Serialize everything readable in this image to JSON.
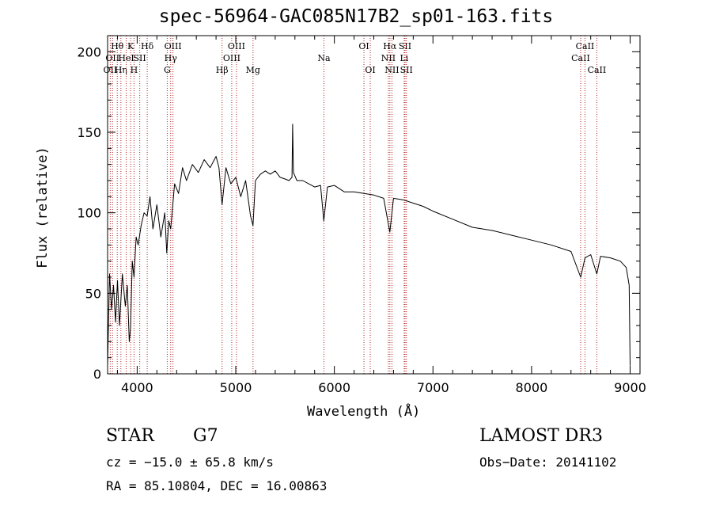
{
  "chart_data": {
    "type": "line",
    "title": "spec-56964-GAC085N17B2_sp01-163.fits",
    "xlabel": "Wavelength (Å)",
    "ylabel": "Flux (relative)",
    "xlim": [
      3700,
      9100
    ],
    "ylim": [
      0,
      210
    ],
    "xticks": [
      4000,
      5000,
      6000,
      7000,
      8000,
      9000
    ],
    "yticks": [
      0,
      50,
      100,
      150,
      200
    ],
    "xtick_labels": [
      "4000",
      "5000",
      "6000",
      "7000",
      "8000",
      "9000"
    ],
    "ytick_labels": [
      "0",
      "50",
      "100",
      "150",
      "200"
    ],
    "series": [
      {
        "name": "spectrum",
        "x": [
          3700,
          3720,
          3740,
          3760,
          3780,
          3800,
          3820,
          3850,
          3880,
          3900,
          3920,
          3933,
          3950,
          3968,
          3990,
          4010,
          4040,
          4070,
          4101,
          4130,
          4160,
          4200,
          4240,
          4280,
          4300,
          4320,
          4340,
          4380,
          4420,
          4460,
          4500,
          4560,
          4620,
          4680,
          4740,
          4800,
          4830,
          4861,
          4900,
          4950,
          5000,
          5050,
          5100,
          5150,
          5175,
          5200,
          5250,
          5300,
          5350,
          5400,
          5450,
          5500,
          5540,
          5570,
          5577,
          5585,
          5620,
          5680,
          5740,
          5800,
          5860,
          5893,
          5930,
          6000,
          6100,
          6200,
          6300,
          6400,
          6500,
          6563,
          6600,
          6700,
          6800,
          6900,
          7000,
          7200,
          7400,
          7600,
          7800,
          8000,
          8200,
          8400,
          8498,
          8542,
          8600,
          8662,
          8700,
          8800,
          8900,
          8960,
          8990,
          9000
        ],
        "y": [
          5,
          62,
          40,
          55,
          32,
          58,
          30,
          62,
          42,
          55,
          20,
          28,
          70,
          60,
          85,
          80,
          92,
          100,
          98,
          110,
          90,
          105,
          85,
          100,
          75,
          95,
          90,
          118,
          112,
          128,
          120,
          130,
          125,
          133,
          128,
          135,
          128,
          105,
          128,
          118,
          122,
          110,
          120,
          98,
          92,
          120,
          124,
          126,
          124,
          126,
          122,
          121,
          120,
          122,
          155,
          125,
          120,
          120,
          118,
          116,
          117,
          95,
          116,
          117,
          113,
          113,
          112,
          111,
          109,
          88,
          109,
          108,
          106,
          104,
          101,
          96,
          91,
          89,
          86,
          83,
          80,
          76,
          60,
          72,
          74,
          62,
          73,
          72,
          70,
          66,
          55,
          5
        ]
      }
    ],
    "lines": [
      {
        "wavelength": 3727,
        "label": "OII",
        "row": 2
      },
      {
        "wavelength": 3750,
        "label": "OII",
        "row": 1
      },
      {
        "wavelength": 3798,
        "label": "Hθ",
        "row": 0
      },
      {
        "wavelength": 3835,
        "label": "Hη",
        "row": 2
      },
      {
        "wavelength": 3889,
        "label": "HeI",
        "row": 1
      },
      {
        "wavelength": 3934,
        "label": "K",
        "row": 0
      },
      {
        "wavelength": 3968,
        "label": "H",
        "row": 2
      },
      {
        "wavelength": 4026,
        "label": "SII",
        "row": 1
      },
      {
        "wavelength": 4102,
        "label": "Hδ",
        "row": 0
      },
      {
        "wavelength": 4305,
        "label": "G",
        "row": 2
      },
      {
        "wavelength": 4340,
        "label": "Hγ",
        "row": 1
      },
      {
        "wavelength": 4363,
        "label": "OIII",
        "row": 0
      },
      {
        "wavelength": 4861,
        "label": "Hβ",
        "row": 2
      },
      {
        "wavelength": 4959,
        "label": "OIII",
        "row": 1
      },
      {
        "wavelength": 5007,
        "label": "OIII",
        "row": 0
      },
      {
        "wavelength": 5175,
        "label": "Mg",
        "row": 2
      },
      {
        "wavelength": 5894,
        "label": "Na",
        "row": 1
      },
      {
        "wavelength": 6300,
        "label": "OI",
        "row": 0
      },
      {
        "wavelength": 6364,
        "label": "OI",
        "row": 2
      },
      {
        "wavelength": 6548,
        "label": "NII",
        "row": 1
      },
      {
        "wavelength": 6563,
        "label": "Hα",
        "row": 0
      },
      {
        "wavelength": 6584,
        "label": "NII",
        "row": 2
      },
      {
        "wavelength": 6708,
        "label": "Li",
        "row": 1
      },
      {
        "wavelength": 6717,
        "label": "SII",
        "row": 0
      },
      {
        "wavelength": 6731,
        "label": "SII",
        "row": 2
      },
      {
        "wavelength": 8498,
        "label": "CaII",
        "row": 1
      },
      {
        "wavelength": 8542,
        "label": "CaII",
        "row": 0
      },
      {
        "wavelength": 8662,
        "label": "CaII",
        "row": 2
      }
    ]
  },
  "info": {
    "class_label": "STAR",
    "subclass_label": "G7",
    "cz": "cz = −15.0 ± 65.8 km/s",
    "radec": "RA =  85.10804, DEC =  16.00863",
    "survey": "LAMOST DR3",
    "obs_date": "Obs−Date: 20141102"
  },
  "colors": {
    "line_marker": "#b22222",
    "spectrum": "#000000"
  }
}
